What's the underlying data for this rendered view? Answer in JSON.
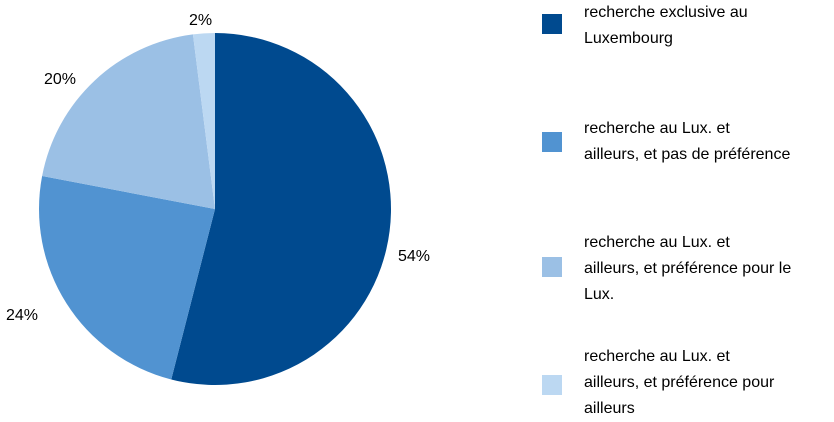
{
  "chart_data": {
    "type": "pie",
    "title": "",
    "categories": [
      "recherche exclusive au\nLuxembourg",
      "recherche au Lux. et\nailleurs, et pas de préférence",
      "recherche au Lux. et\nailleurs, et préférence pour le\nLux.",
      "recherche au Lux. et\nailleurs, et préférence pour\nailleurs"
    ],
    "values": [
      54,
      24,
      20,
      2
    ],
    "value_labels": [
      "54%",
      "24%",
      "20%",
      "2%"
    ],
    "colors": [
      "#004a8f",
      "#5193d1",
      "#9bc0e5",
      "#bcd8f2"
    ],
    "legend_position": "right"
  }
}
